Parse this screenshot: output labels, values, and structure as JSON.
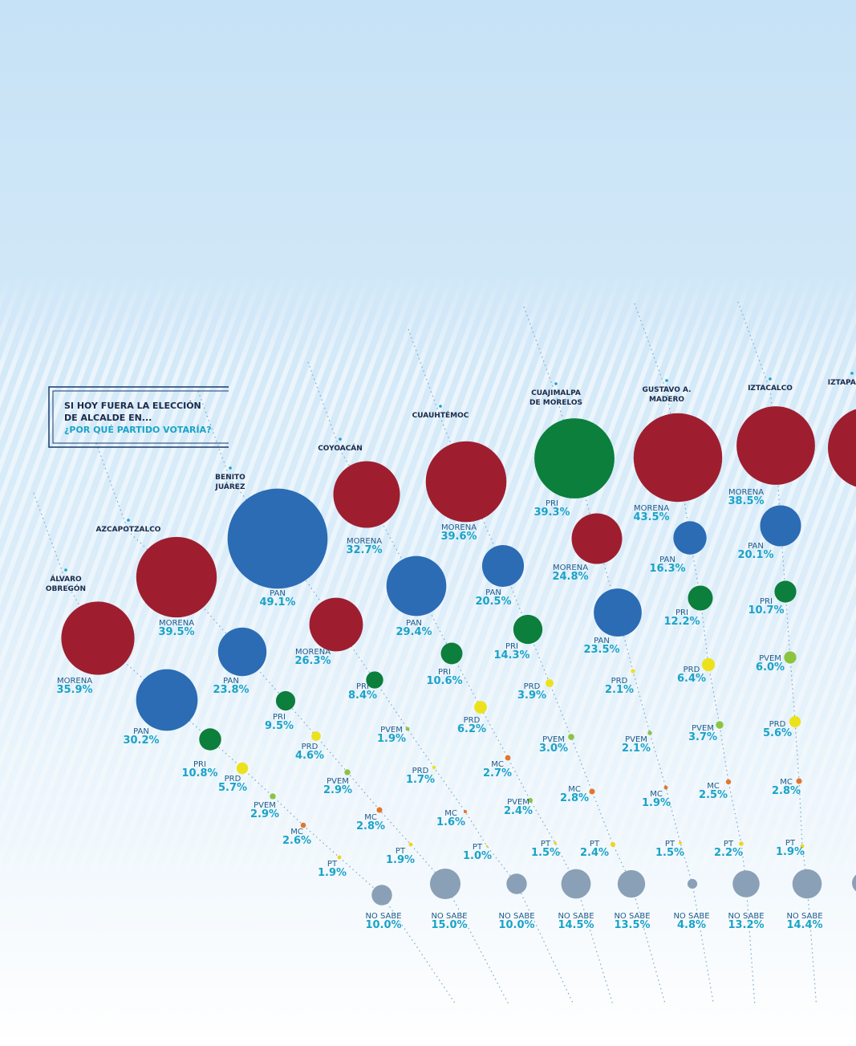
{
  "chart_data": {
    "type": "bubble",
    "title": [
      "SI HOY FUERA LA ELECCIÓN",
      "DE ALCALDE EN...",
      "¿POR QUÉ PARTIDO VOTARÍA?"
    ],
    "colors": {
      "MORENA": "#9e1e2f",
      "PAN": "#2b6cb4",
      "PRI": "#0b7f3b",
      "PRD": "#ece21c",
      "PVEM": "#8cc43f",
      "MC": "#e4762a",
      "PT": "#f2d41a",
      "NO SABE": "#8aa0b6"
    },
    "districts": [
      {
        "name": [
          "ÁLVARO",
          "OBREGÓN"
        ],
        "parties": [
          "MORENA",
          "PAN",
          "PRI",
          "PRD",
          "PVEM",
          "MC",
          "PT",
          "NO SABE"
        ],
        "values": [
          35.9,
          30.2,
          10.8,
          5.7,
          2.9,
          2.6,
          1.9,
          10.0
        ],
        "value_labels": [
          "35.9%",
          "30.2%",
          "10.8%",
          "5.7%",
          "2.9%",
          "2.6%",
          "1.9%",
          "10.0%"
        ]
      },
      {
        "name": [
          "AZCAPOTZALCO"
        ],
        "parties": [
          "MORENA",
          "PAN",
          "PRI",
          "PRD",
          "PVEM",
          "MC",
          "PT",
          "NO SABE"
        ],
        "values": [
          39.5,
          23.8,
          9.5,
          4.6,
          2.9,
          2.8,
          1.9,
          15.0
        ],
        "value_labels": [
          "39.5%",
          "23.8%",
          "9.5%",
          "4.6%",
          "2.9%",
          "2.8%",
          "1.9%",
          "15.0%"
        ]
      },
      {
        "name": [
          "BENITO",
          "JUÁREZ"
        ],
        "parties": [
          "PAN",
          "MORENA",
          "PRI",
          "PVEM",
          "PRD",
          "MC",
          "PT",
          "NO SABE"
        ],
        "values": [
          49.1,
          26.3,
          8.4,
          1.9,
          1.7,
          1.6,
          1.0,
          10.0
        ],
        "value_labels": [
          "49.1%",
          "26.3%",
          "8.4%",
          "1.9%",
          "1.7%",
          "1.6%",
          "1.0%",
          "10.0%"
        ]
      },
      {
        "name": [
          "COYOACÁN"
        ],
        "parties": [
          "MORENA",
          "PAN",
          "PRI",
          "PRD",
          "MC",
          "PVEM",
          "PT",
          "NO SABE"
        ],
        "values": [
          32.7,
          29.4,
          10.6,
          6.2,
          2.7,
          2.4,
          1.5,
          14.5
        ],
        "value_labels": [
          "32.7%",
          "29.4%",
          "10.6%",
          "6.2%",
          "2.7%",
          "2.4%",
          "1.5%",
          "14.5%"
        ]
      },
      {
        "name": [
          "CUAUHTÉMOC"
        ],
        "parties": [
          "MORENA",
          "PAN",
          "PRI",
          "PRD",
          "PVEM",
          "MC",
          "PT",
          "NO SABE"
        ],
        "values": [
          39.6,
          20.5,
          14.3,
          3.9,
          3.0,
          2.8,
          2.4,
          13.5
        ],
        "value_labels": [
          "39.6%",
          "20.5%",
          "14.3%",
          "3.9%",
          "3.0%",
          "2.8%",
          "2.4%",
          "13.5%"
        ]
      },
      {
        "name": [
          "CUAJIMALPA",
          "DE MORELOS"
        ],
        "parties": [
          "PRI",
          "MORENA",
          "PAN",
          "PRD",
          "PVEM",
          "MC",
          "PT",
          "NO SABE"
        ],
        "values": [
          39.3,
          24.8,
          23.5,
          2.1,
          2.1,
          1.9,
          1.5,
          4.8
        ],
        "value_labels": [
          "39.3%",
          "24.8%",
          "23.5%",
          "2.1%",
          "2.1%",
          "1.9%",
          "1.5%",
          "4.8%"
        ]
      },
      {
        "name": [
          "GUSTAVO A.",
          "MADERO"
        ],
        "parties": [
          "MORENA",
          "PAN",
          "PRI",
          "PRD",
          "PVEM",
          "MC",
          "PT",
          "NO SABE"
        ],
        "values": [
          43.5,
          16.3,
          12.2,
          6.4,
          3.7,
          2.5,
          2.2,
          13.2
        ],
        "value_labels": [
          "43.5%",
          "16.3%",
          "12.2%",
          "6.4%",
          "3.7%",
          "2.5%",
          "2.2%",
          "13.2%"
        ]
      },
      {
        "name": [
          "IZTACALCO"
        ],
        "parties": [
          "MORENA",
          "PAN",
          "PRI",
          "PVEM",
          "PRD",
          "MC",
          "PT",
          "NO SABE"
        ],
        "values": [
          38.5,
          20.1,
          10.7,
          6.0,
          5.6,
          2.8,
          1.9,
          14.4
        ],
        "value_labels": [
          "38.5%",
          "20.1%",
          "10.7%",
          "6.0%",
          "5.6%",
          "2.8%",
          "1.9%",
          "14.4%"
        ]
      },
      {
        "name": [
          "IZTAPALAPA"
        ],
        "parties": [],
        "values": [],
        "value_labels": []
      }
    ]
  }
}
